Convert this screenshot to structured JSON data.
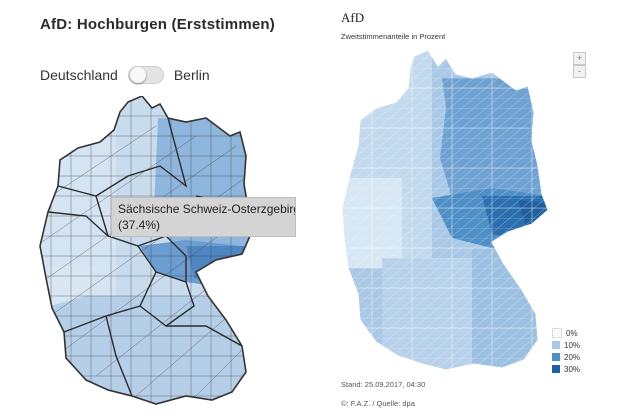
{
  "left": {
    "title": "AfD: Hochburgen (Erststimmen)",
    "toggle": {
      "left_label": "Deutschland",
      "right_label": "Berlin"
    },
    "tooltip": {
      "name": "Sächsische Schweiz-Osterzgebirge",
      "value": "(37.4%)"
    },
    "colors": {
      "light": "#c8dcee",
      "mid": "#8fb6dc",
      "dark": "#4e86c2",
      "border": "#3d3d3d"
    }
  },
  "right": {
    "title": "AfD",
    "subtitle": "Zweitstimmenanteile in Prozent",
    "zoom": {
      "in": "+",
      "out": "-"
    },
    "legend": [
      {
        "label": "0%",
        "color": "#f7fbff"
      },
      {
        "label": "10%",
        "color": "#a9c9e6"
      },
      {
        "label": "20%",
        "color": "#4f8fc8"
      },
      {
        "label": "30%",
        "color": "#1f5f9e"
      }
    ],
    "stand": "Stand: 25.09.2017, 04:30",
    "source": "©: F.A.Z. / Quelle: dpa"
  }
}
